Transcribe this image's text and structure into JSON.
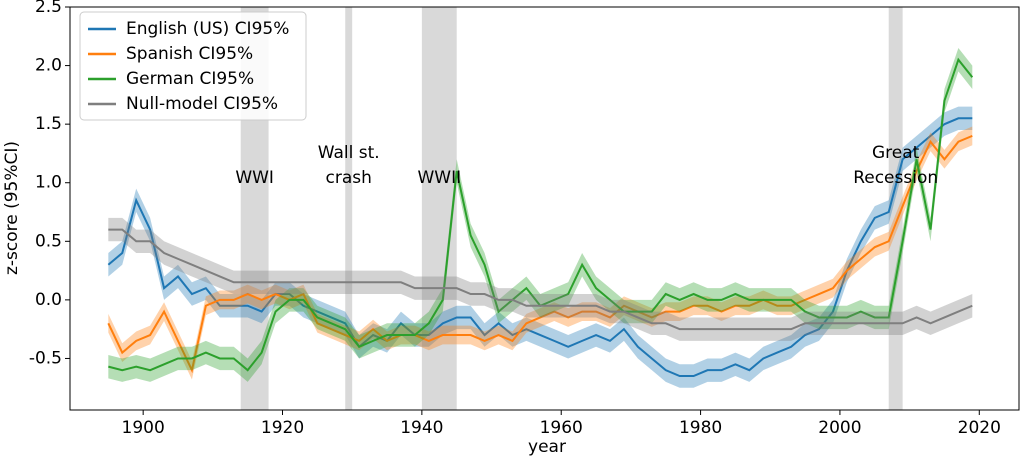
{
  "chart_data": {
    "type": "line",
    "xlabel": "year",
    "ylabel": "z-score (95%CI)",
    "xlim": [
      1889.5,
      2025.7
    ],
    "ylim": [
      -0.94,
      2.5
    ],
    "xticks": [
      1900,
      1920,
      1940,
      1960,
      1980,
      2000,
      2020
    ],
    "yticks": [
      -0.5,
      {
        "value": 0,
        "label": "0.0"
      },
      0.5,
      {
        "value": 1,
        "label": "1.0"
      },
      1.5,
      {
        "value": 2,
        "label": "2.0"
      },
      2.5
    ],
    "legend": "upper left",
    "regions": [
      {
        "start": 1914,
        "end": 1918,
        "label": [
          "WWI"
        ]
      },
      {
        "start": 1929,
        "end": 1930,
        "label": [
          "Wall st.",
          "crash"
        ]
      },
      {
        "start": 1940,
        "end": 1945,
        "label": [
          "WWII"
        ]
      },
      {
        "start": 2007,
        "end": 2009,
        "label": [
          "Great",
          "Recession"
        ]
      }
    ],
    "region_color": "#d9d9d9",
    "x": [
      1895,
      1897,
      1899,
      1901,
      1903,
      1905,
      1907,
      1909,
      1911,
      1913,
      1915,
      1917,
      1919,
      1921,
      1923,
      1925,
      1927,
      1929,
      1931,
      1933,
      1935,
      1937,
      1939,
      1941,
      1943,
      1945,
      1947,
      1949,
      1951,
      1953,
      1955,
      1957,
      1959,
      1961,
      1963,
      1965,
      1967,
      1969,
      1971,
      1973,
      1975,
      1977,
      1979,
      1981,
      1983,
      1985,
      1987,
      1989,
      1991,
      1993,
      1995,
      1997,
      1999,
      2001,
      2003,
      2005,
      2007,
      2009,
      2011,
      2013,
      2015,
      2017,
      2019
    ],
    "series": [
      {
        "name": "English (US) CI95%",
        "color": "#1f77b4",
        "ci": 0.1,
        "values": [
          0.3,
          0.4,
          0.85,
          0.6,
          0.1,
          0.2,
          0.05,
          0.1,
          -0.05,
          -0.05,
          -0.05,
          -0.1,
          0.05,
          0.05,
          -0.05,
          -0.1,
          -0.15,
          -0.2,
          -0.4,
          -0.3,
          -0.35,
          -0.2,
          -0.3,
          -0.3,
          -0.2,
          -0.15,
          -0.15,
          -0.3,
          -0.2,
          -0.3,
          -0.25,
          -0.3,
          -0.35,
          -0.4,
          -0.35,
          -0.3,
          -0.35,
          -0.25,
          -0.4,
          -0.5,
          -0.6,
          -0.65,
          -0.65,
          -0.6,
          -0.6,
          -0.55,
          -0.6,
          -0.5,
          -0.45,
          -0.4,
          -0.3,
          -0.25,
          -0.1,
          0.25,
          0.5,
          0.7,
          0.75,
          1.2,
          1.3,
          1.4,
          1.5,
          1.55,
          1.55
        ]
      },
      {
        "name": "Spanish CI95%",
        "color": "#ff7f0e",
        "ci": 0.08,
        "values": [
          -0.2,
          -0.45,
          -0.35,
          -0.3,
          -0.1,
          -0.35,
          -0.6,
          -0.05,
          0.0,
          0.0,
          0.05,
          0.0,
          0.05,
          0.0,
          0.05,
          -0.2,
          -0.25,
          -0.3,
          -0.35,
          -0.25,
          -0.35,
          -0.3,
          -0.3,
          -0.35,
          -0.3,
          -0.3,
          -0.3,
          -0.35,
          -0.3,
          -0.35,
          -0.2,
          -0.15,
          -0.1,
          -0.15,
          -0.1,
          -0.1,
          -0.15,
          -0.05,
          -0.1,
          -0.15,
          -0.1,
          -0.1,
          -0.05,
          -0.05,
          -0.1,
          -0.05,
          -0.05,
          0.0,
          -0.05,
          -0.05,
          0.0,
          0.05,
          0.1,
          0.25,
          0.35,
          0.45,
          0.5,
          0.8,
          1.1,
          1.35,
          1.2,
          1.35,
          1.4
        ]
      },
      {
        "name": "German CI95%",
        "color": "#2ca02c",
        "ci": 0.1,
        "values": [
          -0.57,
          -0.6,
          -0.57,
          -0.6,
          -0.55,
          -0.5,
          -0.5,
          -0.45,
          -0.5,
          -0.5,
          -0.6,
          -0.45,
          -0.1,
          0.0,
          0.0,
          -0.15,
          -0.2,
          -0.25,
          -0.4,
          -0.35,
          -0.3,
          -0.3,
          -0.3,
          -0.2,
          0.0,
          1.1,
          0.55,
          0.3,
          -0.1,
          0.0,
          0.1,
          -0.05,
          0.0,
          0.05,
          0.3,
          0.1,
          0.0,
          -0.1,
          -0.1,
          -0.1,
          0.05,
          0.0,
          0.05,
          0.0,
          0.0,
          0.05,
          0.0,
          0.0,
          0.0,
          0.0,
          -0.1,
          -0.15,
          -0.15,
          -0.15,
          -0.1,
          -0.15,
          -0.15,
          0.5,
          1.2,
          0.6,
          1.7,
          2.05,
          1.9
        ]
      },
      {
        "name": "Null-model CI95%",
        "color": "#7f7f7f",
        "ci": 0.1,
        "values": [
          0.6,
          0.6,
          0.5,
          0.5,
          0.4,
          0.35,
          0.3,
          0.25,
          0.2,
          0.15,
          0.15,
          0.15,
          0.15,
          0.15,
          0.15,
          0.15,
          0.15,
          0.15,
          0.15,
          0.15,
          0.15,
          0.15,
          0.1,
          0.1,
          0.1,
          0.1,
          0.05,
          0.05,
          0.0,
          0.0,
          -0.05,
          -0.05,
          -0.05,
          -0.05,
          -0.05,
          -0.05,
          -0.1,
          -0.1,
          -0.15,
          -0.2,
          -0.2,
          -0.25,
          -0.25,
          -0.25,
          -0.25,
          -0.25,
          -0.25,
          -0.25,
          -0.25,
          -0.25,
          -0.2,
          -0.2,
          -0.2,
          -0.2,
          -0.2,
          -0.2,
          -0.2,
          -0.2,
          -0.15,
          -0.2,
          -0.15,
          -0.1,
          -0.05
        ]
      }
    ]
  }
}
